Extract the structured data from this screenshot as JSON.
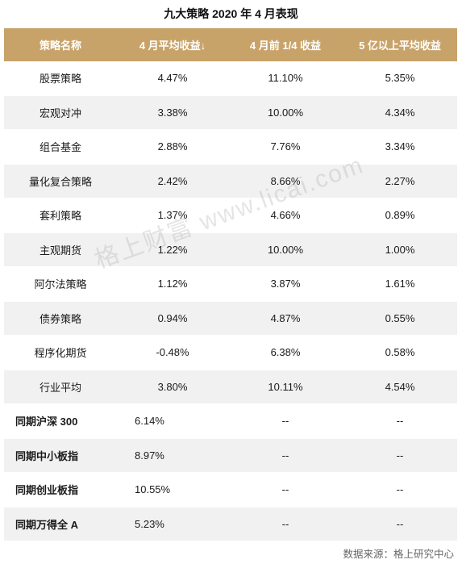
{
  "title": "九大策略 2020 年 4 月表现",
  "headers": [
    "策略名称",
    "4 月平均收益↓",
    "4 月前 1/4 收益",
    "5 亿以上平均收益"
  ],
  "rows": [
    {
      "name": "股票策略",
      "avg": "4.47%",
      "top_quarter": "11.10%",
      "above_500m": "5.35%"
    },
    {
      "name": "宏观对冲",
      "avg": "3.38%",
      "top_quarter": "10.00%",
      "above_500m": "4.34%"
    },
    {
      "name": "组合基金",
      "avg": "2.88%",
      "top_quarter": "7.76%",
      "above_500m": "3.34%"
    },
    {
      "name": "量化复合策略",
      "avg": "2.42%",
      "top_quarter": "8.66%",
      "above_500m": "2.27%"
    },
    {
      "name": "套利策略",
      "avg": "1.37%",
      "top_quarter": "4.66%",
      "above_500m": "0.89%"
    },
    {
      "name": "主观期货",
      "avg": "1.22%",
      "top_quarter": "10.00%",
      "above_500m": "1.00%"
    },
    {
      "name": "阿尔法策略",
      "avg": "1.12%",
      "top_quarter": "3.87%",
      "above_500m": "1.61%"
    },
    {
      "name": "债券策略",
      "avg": "0.94%",
      "top_quarter": "4.87%",
      "above_500m": "0.55%"
    },
    {
      "name": "程序化期货",
      "avg": "-0.48%",
      "top_quarter": "6.38%",
      "above_500m": "0.58%"
    },
    {
      "name": "行业平均",
      "avg": "3.80%",
      "top_quarter": "10.11%",
      "above_500m": "4.54%"
    }
  ],
  "benchmarks": [
    {
      "name": "同期沪深 300",
      "avg": "6.14%",
      "top_quarter": "--",
      "above_500m": "--"
    },
    {
      "name": "同期中小板指",
      "avg": "8.97%",
      "top_quarter": "--",
      "above_500m": "--"
    },
    {
      "name": "同期创业板指",
      "avg": "10.55%",
      "top_quarter": "--",
      "above_500m": "--"
    },
    {
      "name": "同期万得全 A",
      "avg": "5.23%",
      "top_quarter": "--",
      "above_500m": "--"
    }
  ],
  "watermark": "格上财富 www.licai.com",
  "source": "数据来源：格上研究中心",
  "colors": {
    "header_bg": "#c8a369",
    "header_text": "#ffffff",
    "stripe": "#f1f1f1"
  }
}
